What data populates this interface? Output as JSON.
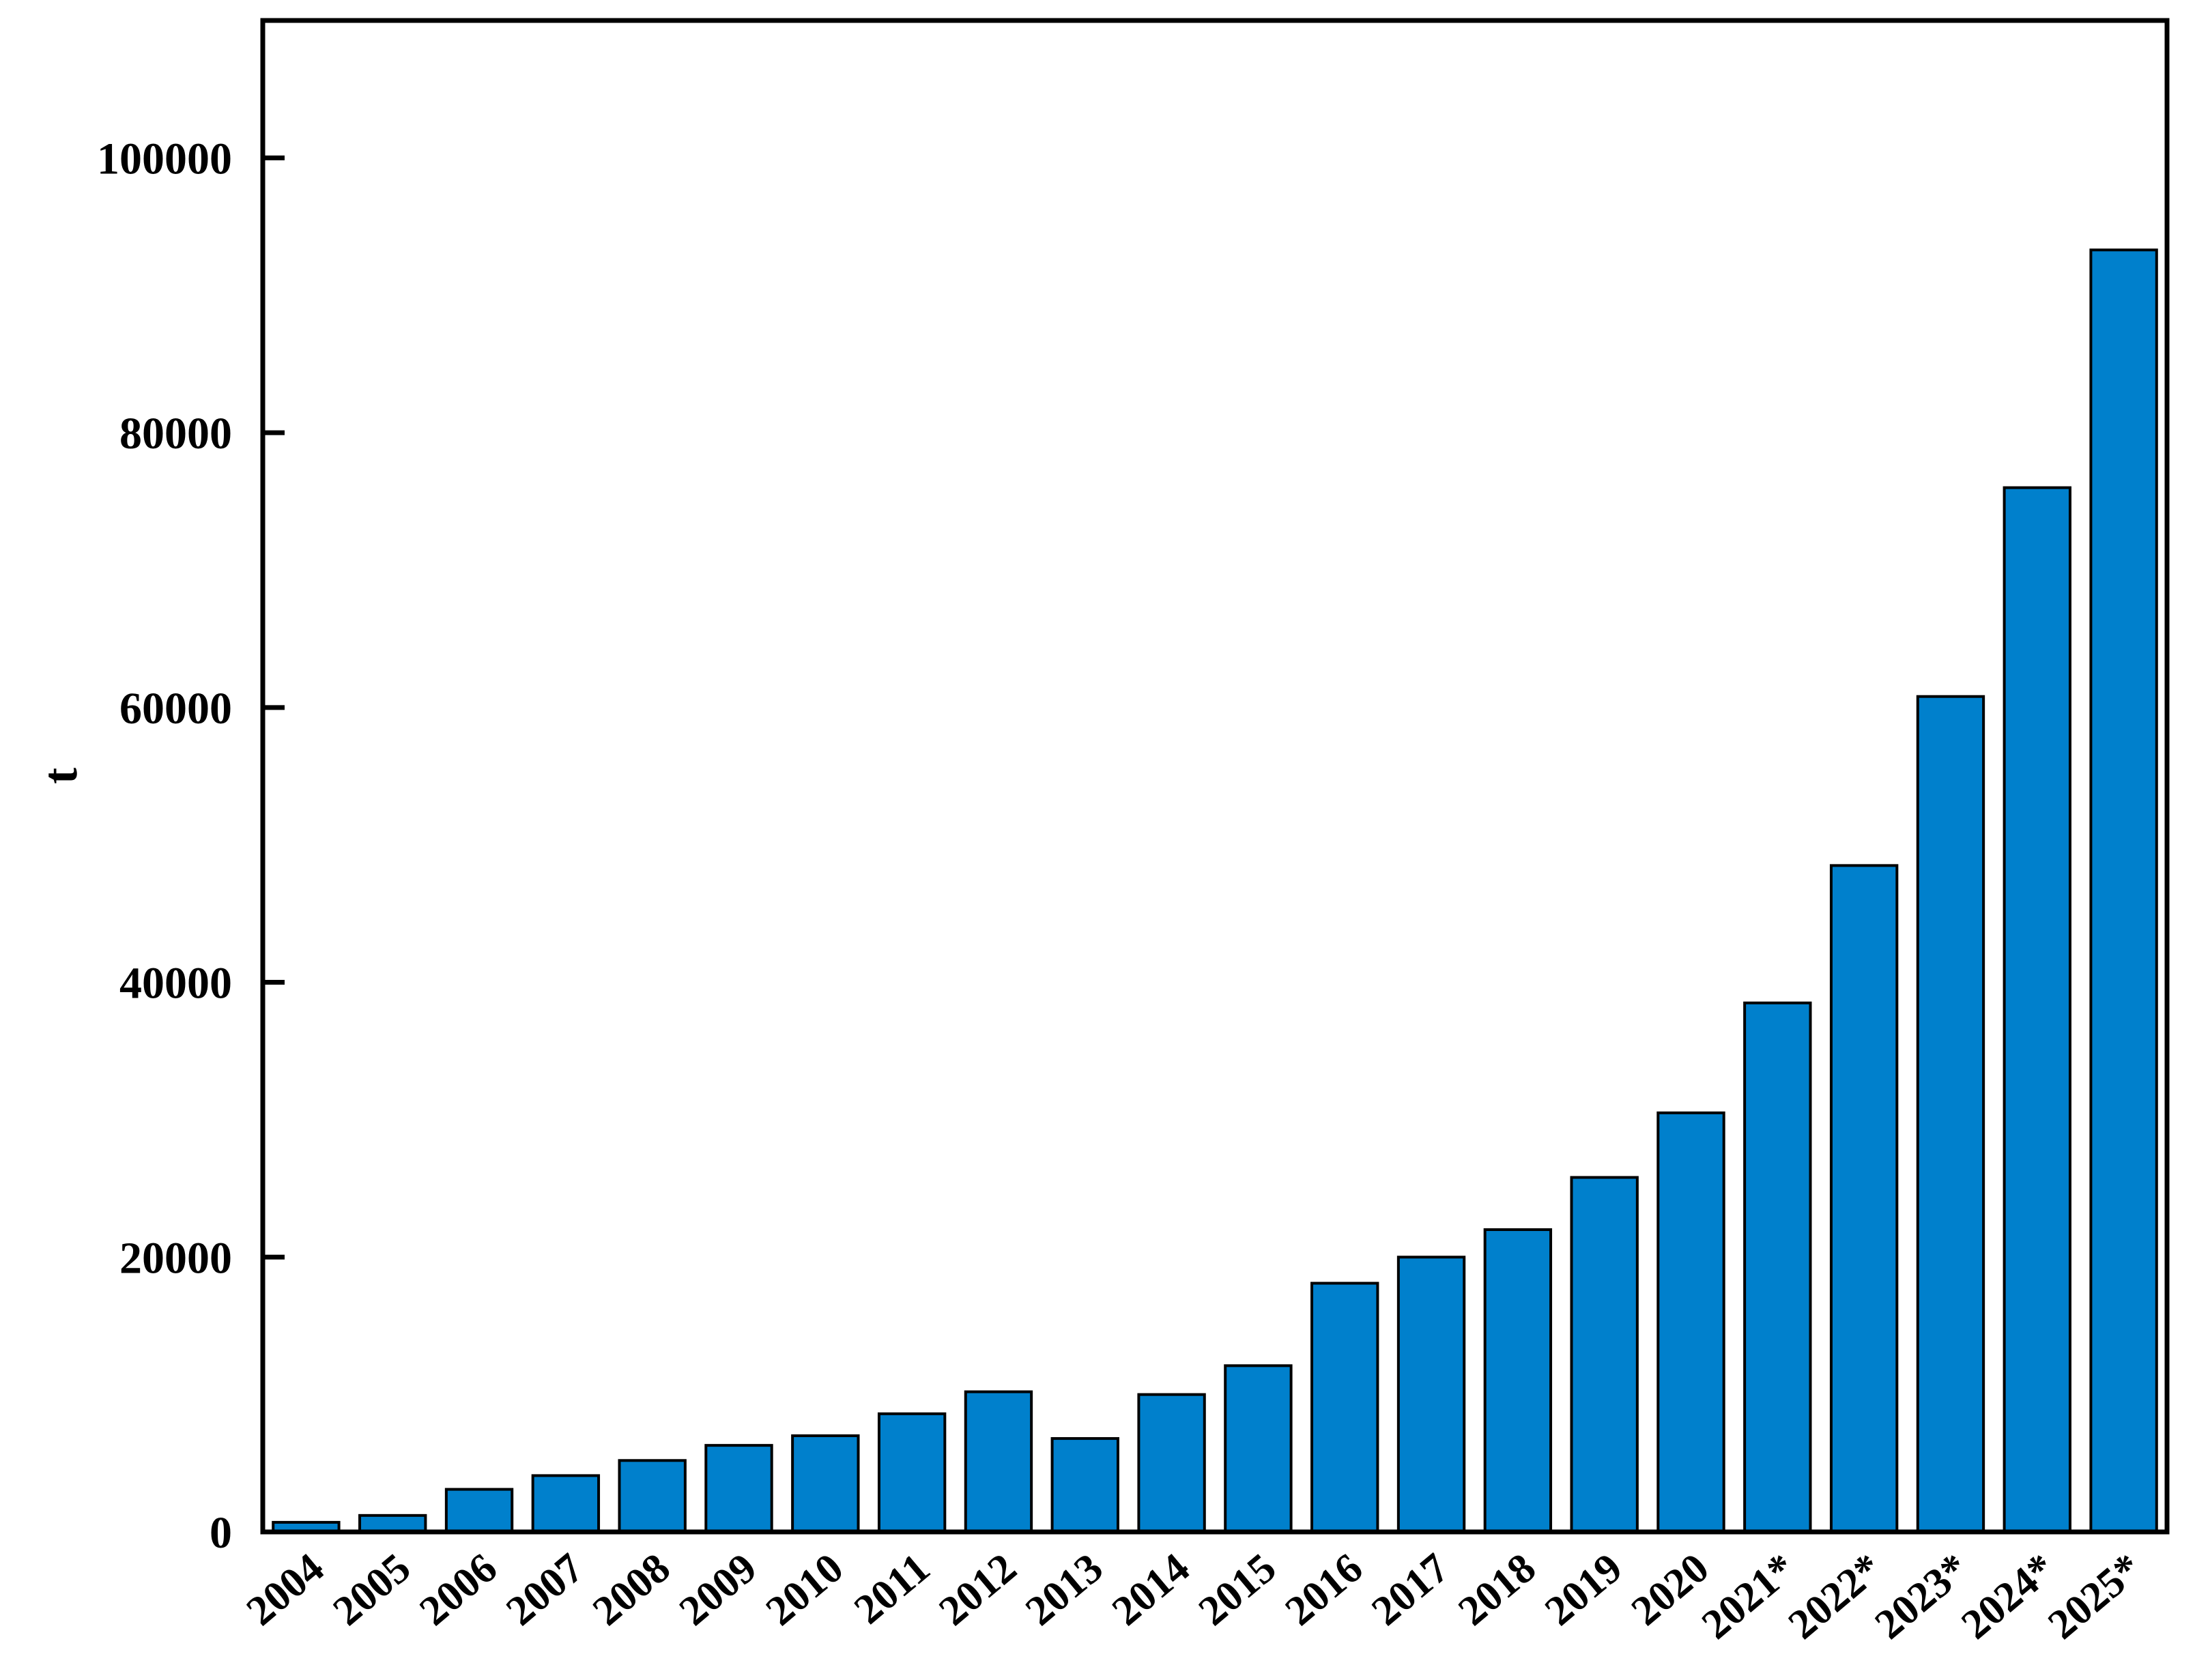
{
  "chart_data": {
    "type": "bar",
    "title": "",
    "xlabel": "",
    "ylabel": "t",
    "categories": [
      "2004",
      "2005",
      "2006",
      "2007",
      "2008",
      "2009",
      "2010",
      "2011",
      "2012",
      "2013",
      "2014",
      "2015",
      "2016",
      "2017",
      "2018",
      "2019",
      "2020",
      "2021*",
      "2022*",
      "2023*",
      "2024*",
      "2025*"
    ],
    "values": [
      700,
      1200,
      3100,
      4100,
      5200,
      6300,
      7000,
      8600,
      10200,
      6800,
      10000,
      12100,
      18100,
      20000,
      22000,
      25800,
      30500,
      38500,
      48500,
      60800,
      76000,
      93300
    ],
    "ylim": [
      0,
      110000
    ],
    "yticks": [
      0,
      20000,
      40000,
      60000,
      80000,
      100000
    ],
    "grid": false,
    "legend": "none",
    "colors": {
      "bar": "#0080cc",
      "bar_edge": "#000000",
      "axis": "#000000"
    }
  }
}
